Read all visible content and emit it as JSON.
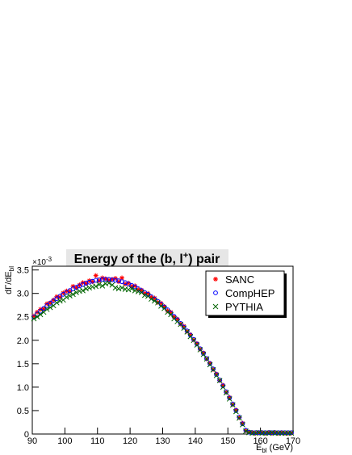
{
  "chart_data": {
    "type": "scatter",
    "title": {
      "text": "Energy of the (b, l",
      "sup": "+",
      "suffix": ") pair"
    },
    "ylabel": {
      "text": "dΓ/dE",
      "sub": "bl"
    },
    "xlabel": {
      "text": "E",
      "sub": "bl",
      "suffix": " (GeV)"
    },
    "y_multiplier": {
      "text": "×10",
      "sup": "-3"
    },
    "xlim": [
      90,
      170
    ],
    "xticks": [
      90,
      100,
      110,
      120,
      130,
      140,
      150,
      160,
      170
    ],
    "ylim": [
      0,
      3.58
    ],
    "yticks": [
      0,
      0.5,
      {
        "value": 1,
        "label": "1.0"
      },
      1.5,
      {
        "value": 2,
        "label": "2.0"
      },
      2.5,
      {
        "value": 3,
        "label": "3.0"
      },
      3.5
    ],
    "legend_position": "top-right",
    "x": [
      90.5,
      91.5,
      92.5,
      93.5,
      94.5,
      95.5,
      96.5,
      97.5,
      98.5,
      99.5,
      100.5,
      101.5,
      102.5,
      103.5,
      104.5,
      105.5,
      106.5,
      107.5,
      108.5,
      109.5,
      110.5,
      111.5,
      112.5,
      113.5,
      114.5,
      115.5,
      116.5,
      117.5,
      118.5,
      119.5,
      120.5,
      121.5,
      122.5,
      123.5,
      124.5,
      125.5,
      126.5,
      127.5,
      128.5,
      129.5,
      130.5,
      131.5,
      132.5,
      133.5,
      134.5,
      135.5,
      136.5,
      137.5,
      138.5,
      139.5,
      140.5,
      141.5,
      142.5,
      143.5,
      144.5,
      145.5,
      146.5,
      147.5,
      148.5,
      149.5,
      150.5,
      151.5,
      152.5,
      153.5,
      154.5,
      155.5,
      156.5,
      157.5,
      158.5,
      159.5,
      160.5,
      161.5,
      162.5,
      163.5,
      164.5,
      165.5,
      166.5,
      167.5,
      168.5,
      169.5
    ],
    "series": [
      {
        "name": "SANC",
        "color": "#ff0000",
        "marker": "star",
        "values": [
          2.52,
          2.6,
          2.66,
          2.67,
          2.78,
          2.8,
          2.86,
          2.93,
          2.92,
          3.01,
          3.05,
          3.04,
          3.15,
          3.12,
          3.18,
          3.23,
          3.21,
          3.27,
          3.25,
          3.38,
          3.27,
          3.33,
          3.31,
          3.28,
          3.3,
          3.32,
          3.25,
          3.33,
          3.2,
          3.22,
          3.15,
          3.16,
          3.08,
          3.07,
          3.0,
          3.0,
          2.92,
          2.9,
          2.81,
          2.79,
          2.72,
          2.63,
          2.6,
          2.5,
          2.45,
          2.35,
          2.3,
          2.19,
          2.12,
          2.01,
          1.93,
          1.81,
          1.73,
          1.6,
          1.51,
          1.38,
          1.28,
          1.14,
          1.04,
          0.89,
          0.78,
          0.63,
          0.51,
          0.35,
          0.23,
          0.07,
          0.04,
          0.03,
          0.02,
          0.03,
          0.03,
          0.02,
          0.03,
          0.02,
          0.03,
          0.02,
          0.03,
          0.02,
          0.02,
          0.02
        ]
      },
      {
        "name": "CompHEP",
        "color": "#0000ff",
        "marker": "circle",
        "values": [
          2.5,
          2.56,
          2.62,
          2.68,
          2.74,
          2.79,
          2.84,
          2.89,
          2.94,
          2.98,
          3.02,
          3.06,
          3.1,
          3.13,
          3.16,
          3.19,
          3.22,
          3.24,
          3.26,
          3.28,
          3.29,
          3.3,
          3.3,
          3.3,
          3.29,
          3.28,
          3.27,
          3.25,
          3.23,
          3.2,
          3.17,
          3.14,
          3.1,
          3.06,
          3.02,
          2.98,
          2.93,
          2.88,
          2.83,
          2.77,
          2.71,
          2.65,
          2.58,
          2.51,
          2.44,
          2.36,
          2.28,
          2.2,
          2.11,
          2.02,
          1.92,
          1.82,
          1.72,
          1.61,
          1.5,
          1.39,
          1.27,
          1.15,
          1.03,
          0.9,
          0.77,
          0.64,
          0.5,
          0.36,
          0.22,
          0.08,
          0.04,
          0.03,
          0.03,
          0.03,
          0.03,
          0.03,
          0.03,
          0.03,
          0.03,
          0.03,
          0.03,
          0.03,
          0.03,
          0.03
        ]
      },
      {
        "name": "PYTHIA",
        "color": "#006400",
        "marker": "x",
        "values": [
          2.46,
          2.5,
          2.55,
          2.6,
          2.66,
          2.7,
          2.74,
          2.8,
          2.84,
          2.86,
          2.92,
          2.95,
          2.98,
          3.02,
          3.05,
          3.06,
          3.1,
          3.12,
          3.14,
          3.15,
          3.19,
          3.16,
          3.21,
          3.22,
          3.18,
          3.12,
          3.1,
          3.12,
          3.09,
          3.08,
          3.1,
          3.06,
          3.04,
          3.02,
          2.96,
          2.94,
          2.88,
          2.84,
          2.8,
          2.73,
          2.68,
          2.6,
          2.55,
          2.46,
          2.4,
          2.34,
          2.26,
          2.18,
          2.08,
          2.0,
          1.9,
          1.8,
          1.7,
          1.6,
          1.48,
          1.37,
          1.25,
          1.14,
          1.0,
          0.88,
          0.75,
          0.62,
          0.48,
          0.34,
          0.2,
          0.06,
          0.03,
          0.02,
          0.02,
          0.03,
          0.02,
          0.02,
          0.02,
          0.03,
          0.02,
          0.02,
          0.02,
          0.02,
          0.02,
          0.02
        ]
      }
    ]
  }
}
